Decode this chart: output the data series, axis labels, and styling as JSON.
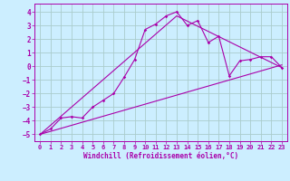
{
  "xlabel": "Windchill (Refroidissement éolien,°C)",
  "background_color": "#cceeff",
  "grid_color": "#aacccc",
  "line_color": "#aa00aa",
  "x_ticks": [
    0,
    1,
    2,
    3,
    4,
    5,
    6,
    7,
    8,
    9,
    10,
    11,
    12,
    13,
    14,
    15,
    16,
    17,
    18,
    19,
    20,
    21,
    22,
    23
  ],
  "y_ticks": [
    -5,
    -4,
    -3,
    -2,
    -1,
    0,
    1,
    2,
    3,
    4
  ],
  "xlim": [
    -0.5,
    23.5
  ],
  "ylim": [
    -5.5,
    4.6
  ],
  "line1_x": [
    0,
    1,
    2,
    3,
    4,
    5,
    6,
    7,
    8,
    9,
    10,
    11,
    12,
    13,
    14,
    15,
    16,
    17,
    18,
    19,
    20,
    21,
    22,
    23
  ],
  "line1_y": [
    -5.0,
    -4.6,
    -3.8,
    -3.7,
    -3.8,
    -3.0,
    -2.5,
    -2.0,
    -0.8,
    0.5,
    2.7,
    3.1,
    3.7,
    4.0,
    3.0,
    3.35,
    1.75,
    2.2,
    -0.7,
    0.4,
    0.5,
    0.7,
    0.7,
    -0.1
  ],
  "line2_x": [
    0,
    23
  ],
  "line2_y": [
    -5.0,
    0.1
  ],
  "line3_x": [
    0,
    13,
    23
  ],
  "line3_y": [
    -5.0,
    3.7,
    -0.1
  ],
  "line4_x": [
    0,
    23
  ],
  "line4_y": [
    -5.0,
    -0.1
  ]
}
